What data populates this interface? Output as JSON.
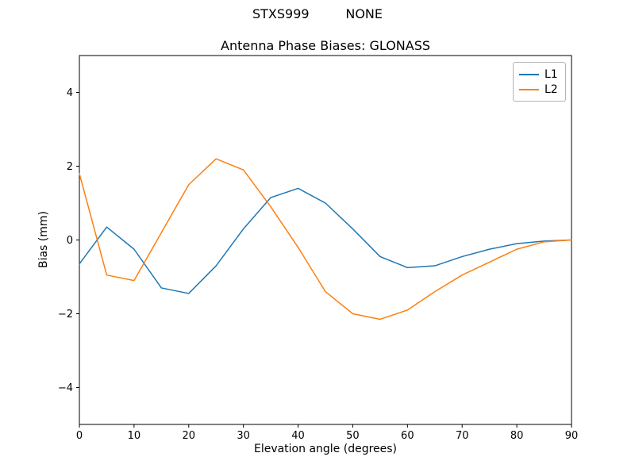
{
  "figure": {
    "suptitle": "STXS999         NONE",
    "title": "Antenna Phase Biases: GLONASS",
    "xlabel": "Elevation angle (degrees)",
    "ylabel": "Bias (mm)"
  },
  "legend": {
    "items": [
      {
        "label": "L1",
        "color": "#1f77b4"
      },
      {
        "label": "L2",
        "color": "#ff7f0e"
      }
    ]
  },
  "chart_data": {
    "type": "line",
    "title": "Antenna Phase Biases: GLONASS",
    "xlabel": "Elevation angle (degrees)",
    "ylabel": "Bias (mm)",
    "xlim": [
      0,
      90
    ],
    "ylim": [
      -5,
      5
    ],
    "xticks": [
      0,
      10,
      20,
      30,
      40,
      50,
      60,
      70,
      80,
      90
    ],
    "yticks": [
      -4,
      -2,
      0,
      2,
      4
    ],
    "grid": false,
    "legend_position": "upper right",
    "x": [
      0,
      5,
      10,
      15,
      20,
      25,
      30,
      35,
      40,
      45,
      50,
      55,
      60,
      65,
      70,
      75,
      80,
      85,
      90
    ],
    "series": [
      {
        "name": "L1",
        "color": "#1f77b4",
        "values": [
          -0.65,
          0.35,
          -0.25,
          -1.3,
          -1.45,
          -0.7,
          0.3,
          1.15,
          1.4,
          1.0,
          0.3,
          -0.45,
          -0.75,
          -0.7,
          -0.45,
          -0.25,
          -0.1,
          -0.03,
          0.0
        ]
      },
      {
        "name": "L2",
        "color": "#ff7f0e",
        "values": [
          1.8,
          -0.95,
          -1.1,
          0.2,
          1.5,
          2.2,
          1.9,
          0.9,
          -0.2,
          -1.4,
          -2.0,
          -2.15,
          -1.9,
          -1.4,
          -0.95,
          -0.6,
          -0.25,
          -0.05,
          0.0
        ]
      }
    ]
  }
}
